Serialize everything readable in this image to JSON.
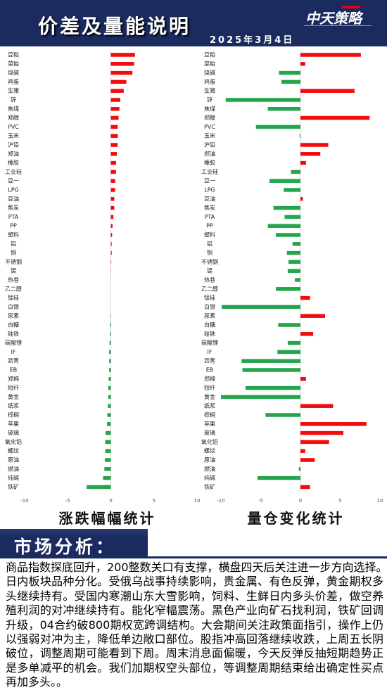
{
  "header": {
    "title": "价差及量能说明",
    "date": "2025年3月4日",
    "logo_text": "中天策略",
    "bg_color": "#1b2b5f"
  },
  "chart_data": [
    {
      "type": "bar",
      "orientation": "horizontal",
      "title": "涨跌幅幅统计",
      "categories": [
        "豆粕",
        "菜粕",
        "烧碱",
        "鸡蛋",
        "生猪",
        "锌",
        "焦煤",
        "郑醇",
        "PVC",
        "玉米",
        "沪铅",
        "郑油",
        "橡胶",
        "工业硅",
        "豆一",
        "LPG",
        "豆油",
        "焦炭",
        "PTA",
        "PP",
        "塑料",
        "铝",
        "铜",
        "不锈钢",
        "锡",
        "热卷",
        "乙二醇",
        "锰硅",
        "白银",
        "尿素",
        "白糖",
        "硅铁",
        "碳酸锂",
        "IF",
        "沥青",
        "EB",
        "郑棉",
        "短纤",
        "黄金",
        "纸浆",
        "棕榈",
        "苹果",
        "玻璃",
        "氧化铝",
        "螺纹",
        "原油",
        "燃油",
        "纯碱",
        "铁矿"
      ],
      "values": [
        2.8,
        2.7,
        2.5,
        1.8,
        1.5,
        1.1,
        1.0,
        0.9,
        0.8,
        0.8,
        0.8,
        0.7,
        0.6,
        0.6,
        0.5,
        0.5,
        0.4,
        0.4,
        0.3,
        0.2,
        0.15,
        0.1,
        0.1,
        0.05,
        0.03,
        0,
        0,
        0,
        0,
        -0.05,
        -0.1,
        -0.1,
        -0.15,
        -0.2,
        -0.2,
        -0.2,
        -0.25,
        -0.3,
        -0.3,
        -0.35,
        -0.4,
        -0.45,
        -0.6,
        -0.65,
        -0.65,
        -0.7,
        -0.75,
        -0.9,
        -2.8
      ],
      "xlim": [
        -10,
        10
      ],
      "xticks": [
        "-10",
        "-5",
        "0",
        "5",
        "10"
      ],
      "grid": false,
      "positive_color": "#f00c0c",
      "negative_color": "#24a54b"
    },
    {
      "type": "bar",
      "orientation": "horizontal",
      "title": "量仓变化统计",
      "categories": [
        "豆粕",
        "菜粕",
        "烧碱",
        "鸡蛋",
        "生猪",
        "锌",
        "焦煤",
        "郑醇",
        "PVC",
        "玉米",
        "沪铅",
        "郑油",
        "橡胶",
        "工业硅",
        "豆一",
        "LPG",
        "豆油",
        "焦炭",
        "PTA",
        "PP",
        "塑料",
        "铝",
        "铜",
        "不锈钢",
        "锡",
        "热卷",
        "乙二醇",
        "锰硅",
        "白银",
        "尿素",
        "白糖",
        "硅铁",
        "碳酸锂",
        "IF",
        "沥青",
        "EB",
        "郑棉",
        "短纤",
        "黄金",
        "纸浆",
        "棕榈",
        "苹果",
        "玻璃",
        "氧化铝",
        "螺纹",
        "原油",
        "燃油",
        "纯碱",
        "铁矿"
      ],
      "values": [
        7.6,
        0.6,
        -2.7,
        -2.4,
        6.8,
        -9.4,
        -4.1,
        8.7,
        -5.6,
        -0.1,
        3.5,
        2.5,
        0.7,
        -1.2,
        -3.9,
        -2.1,
        0.3,
        -3.4,
        -2.0,
        -4.1,
        -3.1,
        -1.0,
        -1.7,
        -1.5,
        -1.6,
        -0.7,
        -3.1,
        1.2,
        -9.9,
        3.1,
        -2.8,
        1.6,
        -1.6,
        -2.9,
        -7.4,
        -7.3,
        0.7,
        -6.9,
        -10.0,
        4.1,
        -4.4,
        8.3,
        5.4,
        3.6,
        0.6,
        1.8,
        -0.2,
        -5.4,
        1.2
      ],
      "xlim": [
        -10,
        10
      ],
      "xticks": [
        "-10",
        "-5",
        "0",
        "5",
        "10"
      ],
      "grid": false,
      "positive_color": "#f00c0c",
      "negative_color": "#24a54b"
    }
  ],
  "analysis": {
    "heading": "市场分析：",
    "lines": [
      "商品指数探底回升，200整数关口有支撑，横盘四天后关注进一步方向选择。",
      "日内板块品种分化。受俄乌战事持续影响，贵金属、有色反弹，黄金期权多",
      "头继续持有。受国内寒潮山东大雪影响，饲料、生鲜日内多头价差，做空养",
      "殖利润的对冲继续持有。能化窄幅震荡。黑色产业向矿石找利润，铁矿回调",
      "升级，04合约破800期权宽跨调结构。大会期间关注政策面指引，操作上仍",
      "以强弱对冲为主，降低单边敞口部位。股指冲高回落继续收跌，上周五长阴",
      "破位，调整周期可能看到下周。周末消息面偏暖，今天反弹反抽短期趋势正",
      "是多单减平的机会。我们加期权空头部位，等调整周期结束给出确定性买点",
      "再加多头。。"
    ]
  }
}
